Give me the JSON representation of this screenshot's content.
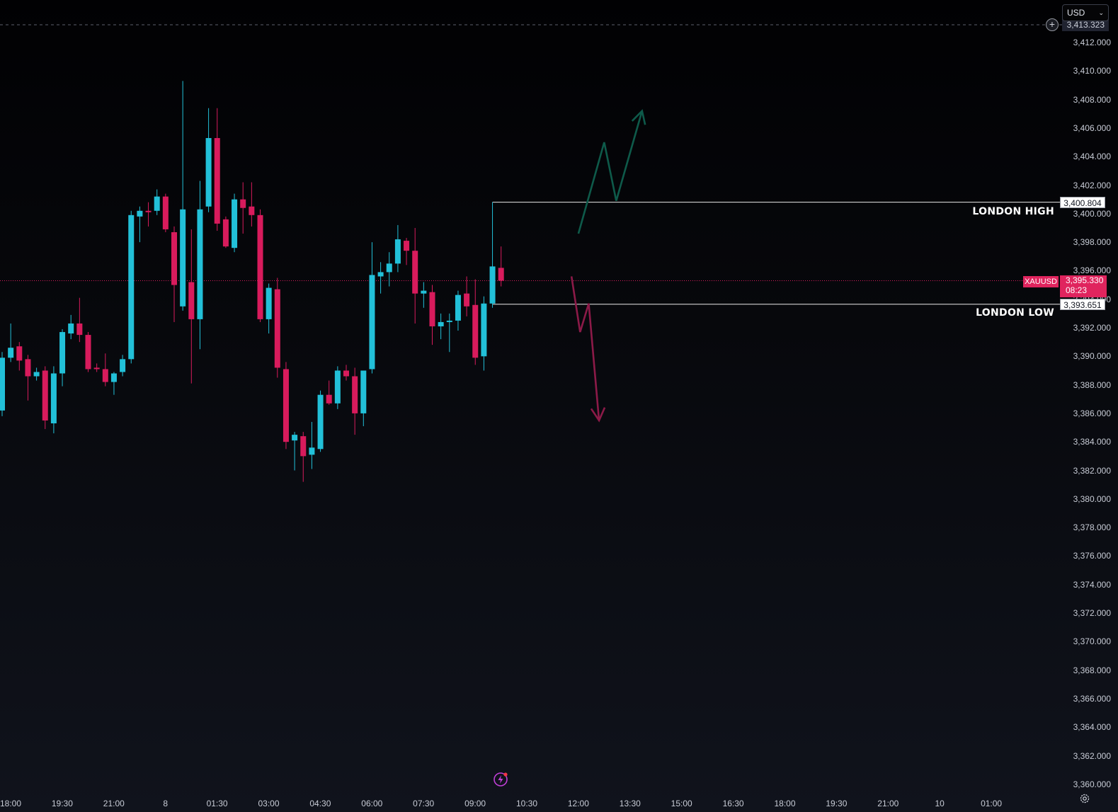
{
  "symbol": "XAUUSD",
  "currency": "USD",
  "top_clipped_price": "3,413.323",
  "last_price": "3,395.330",
  "countdown": "08:23",
  "colors": {
    "up": "#22c0d8",
    "down": "#d81b5c",
    "bull_scenario": "#0e5a4a",
    "bear_scenario": "#8c1a48",
    "level_line": "#e8e8e8"
  },
  "levels": {
    "london_high": {
      "label": "LONDON HIGH",
      "value": 3400.804,
      "value_text": "3,400.804"
    },
    "london_low": {
      "label": "LONDON LOW",
      "value": 3393.651,
      "value_text": "3,393.651"
    }
  },
  "price_axis": [
    "3,412.000",
    "3,410.000",
    "3,408.000",
    "3,406.000",
    "3,404.000",
    "3,402.000",
    "3,400.000",
    "3,398.000",
    "3,396.000",
    "3,394.000",
    "3,392.000",
    "3,390.000",
    "3,388.000",
    "3,386.000",
    "3,384.000",
    "3,382.000",
    "3,380.000",
    "3,378.000",
    "3,376.000",
    "3,374.000",
    "3,372.000",
    "3,370.000",
    "3,368.000",
    "3,366.000",
    "3,364.000",
    "3,362.000",
    "3,360.000"
  ],
  "time_axis": [
    "18:00",
    "19:30",
    "21:00",
    "8",
    "01:30",
    "03:00",
    "04:30",
    "06:00",
    "07:30",
    "09:00",
    "10:30",
    "12:00",
    "13:30",
    "15:00",
    "16:30",
    "18:00",
    "19:30",
    "21:00",
    "10",
    "01:00"
  ],
  "chart_data": {
    "type": "candlestick",
    "interval_minutes": 15,
    "x_unit": "15-minute bars; first bar 18:00, last bar 09:15 (day 8)",
    "ylim": [
      3360,
      3414
    ],
    "candles": [
      {
        "o": 3386.2,
        "h": 3390.3,
        "l": 3385.8,
        "c": 3389.9
      },
      {
        "o": 3389.9,
        "h": 3392.3,
        "l": 3389.6,
        "c": 3390.6
      },
      {
        "o": 3390.7,
        "h": 3391.0,
        "l": 3389.0,
        "c": 3389.7
      },
      {
        "o": 3389.8,
        "h": 3390.1,
        "l": 3386.9,
        "c": 3388.6
      },
      {
        "o": 3388.6,
        "h": 3389.2,
        "l": 3388.3,
        "c": 3388.9
      },
      {
        "o": 3389.0,
        "h": 3389.3,
        "l": 3384.9,
        "c": 3385.5
      },
      {
        "o": 3385.3,
        "h": 3389.3,
        "l": 3384.6,
        "c": 3388.8
      },
      {
        "o": 3388.8,
        "h": 3391.9,
        "l": 3387.9,
        "c": 3391.7
      },
      {
        "o": 3391.6,
        "h": 3392.9,
        "l": 3391.2,
        "c": 3392.3
      },
      {
        "o": 3392.3,
        "h": 3394.1,
        "l": 3391.0,
        "c": 3391.5
      },
      {
        "o": 3391.5,
        "h": 3391.7,
        "l": 3388.9,
        "c": 3389.1
      },
      {
        "o": 3389.2,
        "h": 3389.5,
        "l": 3388.9,
        "c": 3389.1
      },
      {
        "o": 3389.1,
        "h": 3390.2,
        "l": 3387.9,
        "c": 3388.2
      },
      {
        "o": 3388.2,
        "h": 3388.9,
        "l": 3387.3,
        "c": 3388.8
      },
      {
        "o": 3388.9,
        "h": 3390.1,
        "l": 3388.6,
        "c": 3389.8
      },
      {
        "o": 3389.8,
        "h": 3400.2,
        "l": 3389.5,
        "c": 3399.9
      },
      {
        "o": 3399.8,
        "h": 3400.5,
        "l": 3398.0,
        "c": 3400.2
      },
      {
        "o": 3400.2,
        "h": 3400.8,
        "l": 3399.1,
        "c": 3400.1
      },
      {
        "o": 3400.2,
        "h": 3401.7,
        "l": 3399.9,
        "c": 3401.2
      },
      {
        "o": 3401.2,
        "h": 3401.4,
        "l": 3398.7,
        "c": 3398.9
      },
      {
        "o": 3398.7,
        "h": 3399.1,
        "l": 3392.4,
        "c": 3395.0
      },
      {
        "o": 3393.5,
        "h": 3409.3,
        "l": 3393.2,
        "c": 3400.3
      },
      {
        "o": 3395.2,
        "h": 3398.9,
        "l": 3388.1,
        "c": 3392.6
      },
      {
        "o": 3392.6,
        "h": 3402.3,
        "l": 3390.5,
        "c": 3400.3
      },
      {
        "o": 3400.5,
        "h": 3407.4,
        "l": 3400.1,
        "c": 3405.3
      },
      {
        "o": 3405.3,
        "h": 3407.4,
        "l": 3398.8,
        "c": 3399.3
      },
      {
        "o": 3399.6,
        "h": 3399.8,
        "l": 3397.6,
        "c": 3397.7
      },
      {
        "o": 3397.6,
        "h": 3401.4,
        "l": 3397.3,
        "c": 3401.0
      },
      {
        "o": 3401.0,
        "h": 3402.2,
        "l": 3398.6,
        "c": 3400.4
      },
      {
        "o": 3400.5,
        "h": 3402.2,
        "l": 3399.1,
        "c": 3399.9
      },
      {
        "o": 3399.9,
        "h": 3400.3,
        "l": 3392.4,
        "c": 3392.6
      },
      {
        "o": 3392.6,
        "h": 3395.1,
        "l": 3391.6,
        "c": 3394.8
      },
      {
        "o": 3394.7,
        "h": 3395.5,
        "l": 3388.5,
        "c": 3389.2
      },
      {
        "o": 3389.1,
        "h": 3389.6,
        "l": 3383.5,
        "c": 3384.0
      },
      {
        "o": 3384.1,
        "h": 3384.7,
        "l": 3382.0,
        "c": 3384.5
      },
      {
        "o": 3384.4,
        "h": 3384.7,
        "l": 3381.2,
        "c": 3383.0
      },
      {
        "o": 3383.1,
        "h": 3385.4,
        "l": 3382.1,
        "c": 3383.6
      },
      {
        "o": 3383.5,
        "h": 3387.6,
        "l": 3383.3,
        "c": 3387.3
      },
      {
        "o": 3387.3,
        "h": 3388.3,
        "l": 3386.6,
        "c": 3386.7
      },
      {
        "o": 3386.7,
        "h": 3389.3,
        "l": 3386.3,
        "c": 3389.0
      },
      {
        "o": 3389.0,
        "h": 3389.4,
        "l": 3388.3,
        "c": 3388.6
      },
      {
        "o": 3388.6,
        "h": 3389.2,
        "l": 3384.5,
        "c": 3386.0
      },
      {
        "o": 3386.0,
        "h": 3388.6,
        "l": 3385.1,
        "c": 3389.0
      },
      {
        "o": 3389.1,
        "h": 3398.0,
        "l": 3388.8,
        "c": 3395.7
      },
      {
        "o": 3395.6,
        "h": 3396.6,
        "l": 3394.4,
        "c": 3395.9
      },
      {
        "o": 3395.9,
        "h": 3397.3,
        "l": 3394.9,
        "c": 3396.5
      },
      {
        "o": 3396.5,
        "h": 3399.2,
        "l": 3395.9,
        "c": 3398.2
      },
      {
        "o": 3398.1,
        "h": 3398.3,
        "l": 3396.4,
        "c": 3397.4
      },
      {
        "o": 3397.4,
        "h": 3399.0,
        "l": 3392.3,
        "c": 3394.4
      },
      {
        "o": 3394.4,
        "h": 3395.2,
        "l": 3393.4,
        "c": 3394.6
      },
      {
        "o": 3394.5,
        "h": 3395.0,
        "l": 3390.8,
        "c": 3392.1
      },
      {
        "o": 3392.1,
        "h": 3393.0,
        "l": 3391.2,
        "c": 3392.4
      },
      {
        "o": 3392.4,
        "h": 3393.0,
        "l": 3390.3,
        "c": 3392.5
      },
      {
        "o": 3392.5,
        "h": 3394.6,
        "l": 3391.8,
        "c": 3394.3
      },
      {
        "o": 3394.4,
        "h": 3395.6,
        "l": 3392.8,
        "c": 3393.5
      },
      {
        "o": 3393.6,
        "h": 3395.4,
        "l": 3389.4,
        "c": 3389.9
      },
      {
        "o": 3390.0,
        "h": 3394.2,
        "l": 3389.0,
        "c": 3393.7
      },
      {
        "o": 3393.7,
        "h": 3400.8,
        "l": 3393.4,
        "c": 3396.3
      },
      {
        "o": 3396.2,
        "h": 3397.7,
        "l": 3394.9,
        "c": 3395.3
      }
    ],
    "annotations": {
      "bull_path": [
        [
          3398.6,
          10.5
        ],
        [
          3405.0,
          11.25
        ],
        [
          3400.9,
          11.6
        ],
        [
          3407.2,
          12.35
        ]
      ],
      "bear_path": [
        [
          3395.6,
          10.3
        ],
        [
          3391.7,
          10.55
        ],
        [
          3393.7,
          10.8
        ],
        [
          3385.5,
          11.1
        ]
      ]
    }
  }
}
